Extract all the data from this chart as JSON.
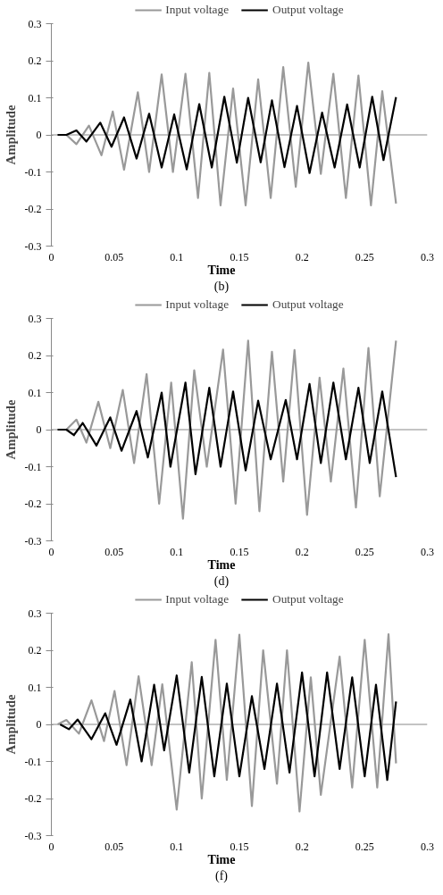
{
  "chart_data": [
    {
      "type": "line",
      "xlabel": "Time",
      "ylabel": "Amplitude",
      "annotations": [
        "(b)"
      ],
      "ref_lines": [
        {
          "axis": "y",
          "value": 0,
          "color": "#888888"
        }
      ],
      "xlim": [
        0,
        0.3
      ],
      "ylim": [
        -0.3,
        0.3
      ],
      "xticks": [
        0,
        0.05,
        0.1,
        0.15,
        0.2,
        0.25,
        0.3
      ],
      "yticks": [
        -0.3,
        -0.2,
        -0.1,
        0,
        0.1,
        0.2,
        0.3
      ],
      "grid": false,
      "legend": "top",
      "marker": "none",
      "line_style": "solid",
      "series": [
        {
          "name": "Input voltage",
          "color": "#999999",
          "x": [
            0.005,
            0.012,
            0.02,
            0.03,
            0.04,
            0.049,
            0.058,
            0.069,
            0.078,
            0.088,
            0.097,
            0.107,
            0.117,
            0.126,
            0.135,
            0.145,
            0.155,
            0.165,
            0.175,
            0.185,
            0.195,
            0.205,
            0.215,
            0.225,
            0.235,
            0.245,
            0.255,
            0.264,
            0.275
          ],
          "values": [
            0,
            0,
            -0.025,
            0.025,
            -0.055,
            0.063,
            -0.094,
            0.115,
            -0.1,
            0.163,
            -0.1,
            0.165,
            -0.17,
            0.167,
            -0.19,
            0.125,
            -0.19,
            0.15,
            -0.17,
            0.183,
            -0.14,
            0.195,
            -0.105,
            0.165,
            -0.17,
            0.16,
            -0.19,
            0.118,
            -0.185
          ]
        },
        {
          "name": "Output voltage",
          "color": "#000000",
          "x": [
            0.005,
            0.012,
            0.02,
            0.028,
            0.039,
            0.048,
            0.058,
            0.068,
            0.078,
            0.088,
            0.098,
            0.108,
            0.118,
            0.128,
            0.138,
            0.148,
            0.157,
            0.167,
            0.176,
            0.186,
            0.196,
            0.206,
            0.216,
            0.226,
            0.236,
            0.246,
            0.256,
            0.265,
            0.275
          ],
          "values": [
            0,
            0,
            0.012,
            -0.018,
            0.033,
            -0.032,
            0.047,
            -0.064,
            0.057,
            -0.088,
            0.055,
            -0.093,
            0.083,
            -0.088,
            0.103,
            -0.075,
            0.1,
            -0.074,
            0.093,
            -0.087,
            0.078,
            -0.103,
            0.06,
            -0.088,
            0.082,
            -0.088,
            0.103,
            -0.068,
            0.102
          ]
        }
      ]
    },
    {
      "type": "line",
      "xlabel": "Time",
      "ylabel": "Amplitude",
      "annotations": [
        "(d)"
      ],
      "ref_lines": [
        {
          "axis": "y",
          "value": 0,
          "color": "#888888"
        }
      ],
      "xlim": [
        0,
        0.3
      ],
      "ylim": [
        -0.3,
        0.3
      ],
      "xticks": [
        0,
        0.05,
        0.1,
        0.15,
        0.2,
        0.25,
        0.3
      ],
      "yticks": [
        -0.3,
        -0.2,
        -0.1,
        0,
        0.1,
        0.2,
        0.3
      ],
      "grid": false,
      "legend": "top",
      "marker": "none",
      "line_style": "solid",
      "series": [
        {
          "name": "Input voltage",
          "color": "#999999",
          "x": [
            0.005,
            0.012,
            0.02,
            0.028,
            0.0375,
            0.047,
            0.057,
            0.066,
            0.076,
            0.086,
            0.0956,
            0.105,
            0.114,
            0.124,
            0.137,
            0.147,
            0.157,
            0.166,
            0.176,
            0.185,
            0.194,
            0.204,
            0.214,
            0.223,
            0.233,
            0.243,
            0.253,
            0.262,
            0.275
          ],
          "values": [
            0,
            0,
            0.027,
            -0.035,
            0.075,
            -0.05,
            0.107,
            -0.09,
            0.15,
            -0.2,
            0.127,
            -0.24,
            0.16,
            -0.1,
            0.216,
            -0.2,
            0.24,
            -0.22,
            0.21,
            -0.14,
            0.215,
            -0.23,
            0.14,
            -0.14,
            0.165,
            -0.21,
            0.22,
            -0.18,
            0.24
          ]
        },
        {
          "name": "Output voltage",
          "color": "#000000",
          "x": [
            0.005,
            0.012,
            0.018,
            0.025,
            0.036,
            0.047,
            0.056,
            0.068,
            0.077,
            0.088,
            0.095,
            0.107,
            0.115,
            0.126,
            0.135,
            0.145,
            0.155,
            0.165,
            0.175,
            0.187,
            0.196,
            0.206,
            0.215,
            0.225,
            0.235,
            0.245,
            0.254,
            0.264,
            0.275
          ],
          "values": [
            0,
            0,
            -0.015,
            0.018,
            -0.043,
            0.033,
            -0.057,
            0.05,
            -0.075,
            0.1,
            -0.1,
            0.127,
            -0.12,
            0.113,
            -0.1,
            0.103,
            -0.11,
            0.078,
            -0.08,
            0.08,
            -0.08,
            0.123,
            -0.09,
            0.127,
            -0.08,
            0.113,
            -0.09,
            0.103,
            -0.128
          ]
        }
      ]
    },
    {
      "type": "line",
      "xlabel": "Time",
      "ylabel": "Amplitude",
      "annotations": [
        "(f)"
      ],
      "ref_lines": [
        {
          "axis": "y",
          "value": 0,
          "color": "#888888"
        }
      ],
      "xlim": [
        0,
        0.3
      ],
      "ylim": [
        -0.3,
        0.3
      ],
      "xticks": [
        0,
        0.05,
        0.1,
        0.15,
        0.2,
        0.25,
        0.3
      ],
      "yticks": [
        -0.3,
        -0.2,
        -0.1,
        0,
        0.1,
        0.2,
        0.3
      ],
      "grid": false,
      "legend": "top",
      "marker": "none",
      "line_style": "solid",
      "series": [
        {
          "name": "Input voltage",
          "color": "#999999",
          "x": [
            0.005,
            0.012,
            0.022,
            0.032,
            0.042,
            0.0504,
            0.06,
            0.0696,
            0.08,
            0.0885,
            0.1,
            0.112,
            0.12,
            0.131,
            0.14,
            0.15,
            0.16,
            0.169,
            0.18,
            0.188,
            0.198,
            0.207,
            0.215,
            0.23,
            0.24,
            0.25,
            0.26,
            0.269,
            0.275
          ],
          "values": [
            0,
            0.012,
            -0.025,
            0.065,
            -0.045,
            0.09,
            -0.11,
            0.13,
            -0.11,
            0.108,
            -0.23,
            0.168,
            -0.2,
            0.228,
            -0.15,
            0.242,
            -0.22,
            0.2,
            -0.16,
            0.2,
            -0.235,
            0.127,
            -0.19,
            0.183,
            -0.17,
            0.228,
            -0.17,
            0.243,
            -0.105
          ]
        },
        {
          "name": "Output voltage",
          "color": "#000000",
          "x": [
            0.007,
            0.014,
            0.021,
            0.032,
            0.043,
            0.052,
            0.063,
            0.072,
            0.082,
            0.09,
            0.1,
            0.11,
            0.12,
            0.13,
            0.14,
            0.15,
            0.16,
            0.17,
            0.18,
            0.19,
            0.2,
            0.21,
            0.22,
            0.23,
            0.24,
            0.25,
            0.259,
            0.268,
            0.275
          ],
          "values": [
            0,
            -0.013,
            0.013,
            -0.04,
            0.03,
            -0.055,
            0.067,
            -0.1,
            0.107,
            -0.07,
            0.132,
            -0.13,
            0.128,
            -0.14,
            0.11,
            -0.14,
            0.076,
            -0.12,
            0.11,
            -0.13,
            0.14,
            -0.14,
            0.14,
            -0.12,
            0.127,
            -0.14,
            0.107,
            -0.15,
            0.062
          ]
        }
      ]
    }
  ]
}
